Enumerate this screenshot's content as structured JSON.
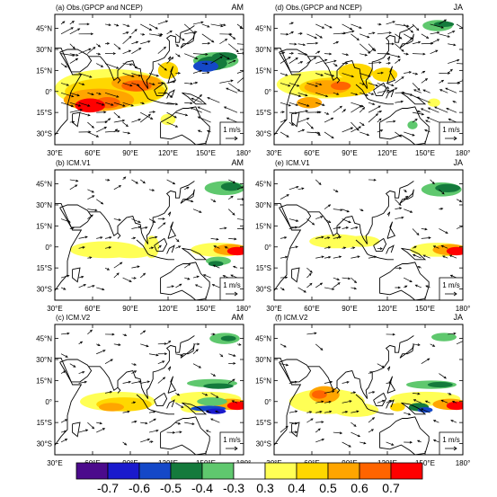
{
  "panels": [
    {
      "id": "a",
      "title": "(a)  Obs.(GPCP and NCEP)",
      "season": "AM"
    },
    {
      "id": "d",
      "title": "(d)  Obs.(GPCP and NCEP)",
      "season": "JA"
    },
    {
      "id": "b",
      "title": "(b)  ICM.V1",
      "season": "AM"
    },
    {
      "id": "e",
      "title": "(e)  ICM.V1",
      "season": "JA"
    },
    {
      "id": "c",
      "title": "(c)  ICM.V2",
      "season": "AM"
    },
    {
      "id": "f",
      "title": "(f)  ICM.V2",
      "season": "JA"
    }
  ],
  "lon_ticks": [
    "30°E",
    "60°E",
    "90°E",
    "120°E",
    "150°E",
    "180°"
  ],
  "lat_ticks": [
    "45°N",
    "30°N",
    "15°N",
    "0°",
    "15°S",
    "30°S"
  ],
  "ref_vector": "1 m/s",
  "colorbar": {
    "labels": [
      "-0.7",
      "-0.6",
      "-0.5",
      "-0.4",
      "-0.3",
      "0.3",
      "0.4",
      "0.5",
      "0.6",
      "0.7"
    ],
    "colors": [
      "#4b0a8c",
      "#1a1acd",
      "#1448c8",
      "#147a3c",
      "#5fc86e",
      "#ffffff",
      "#ffff55",
      "#ffd700",
      "#ffa500",
      "#ff6400",
      "#ff0000"
    ]
  }
}
